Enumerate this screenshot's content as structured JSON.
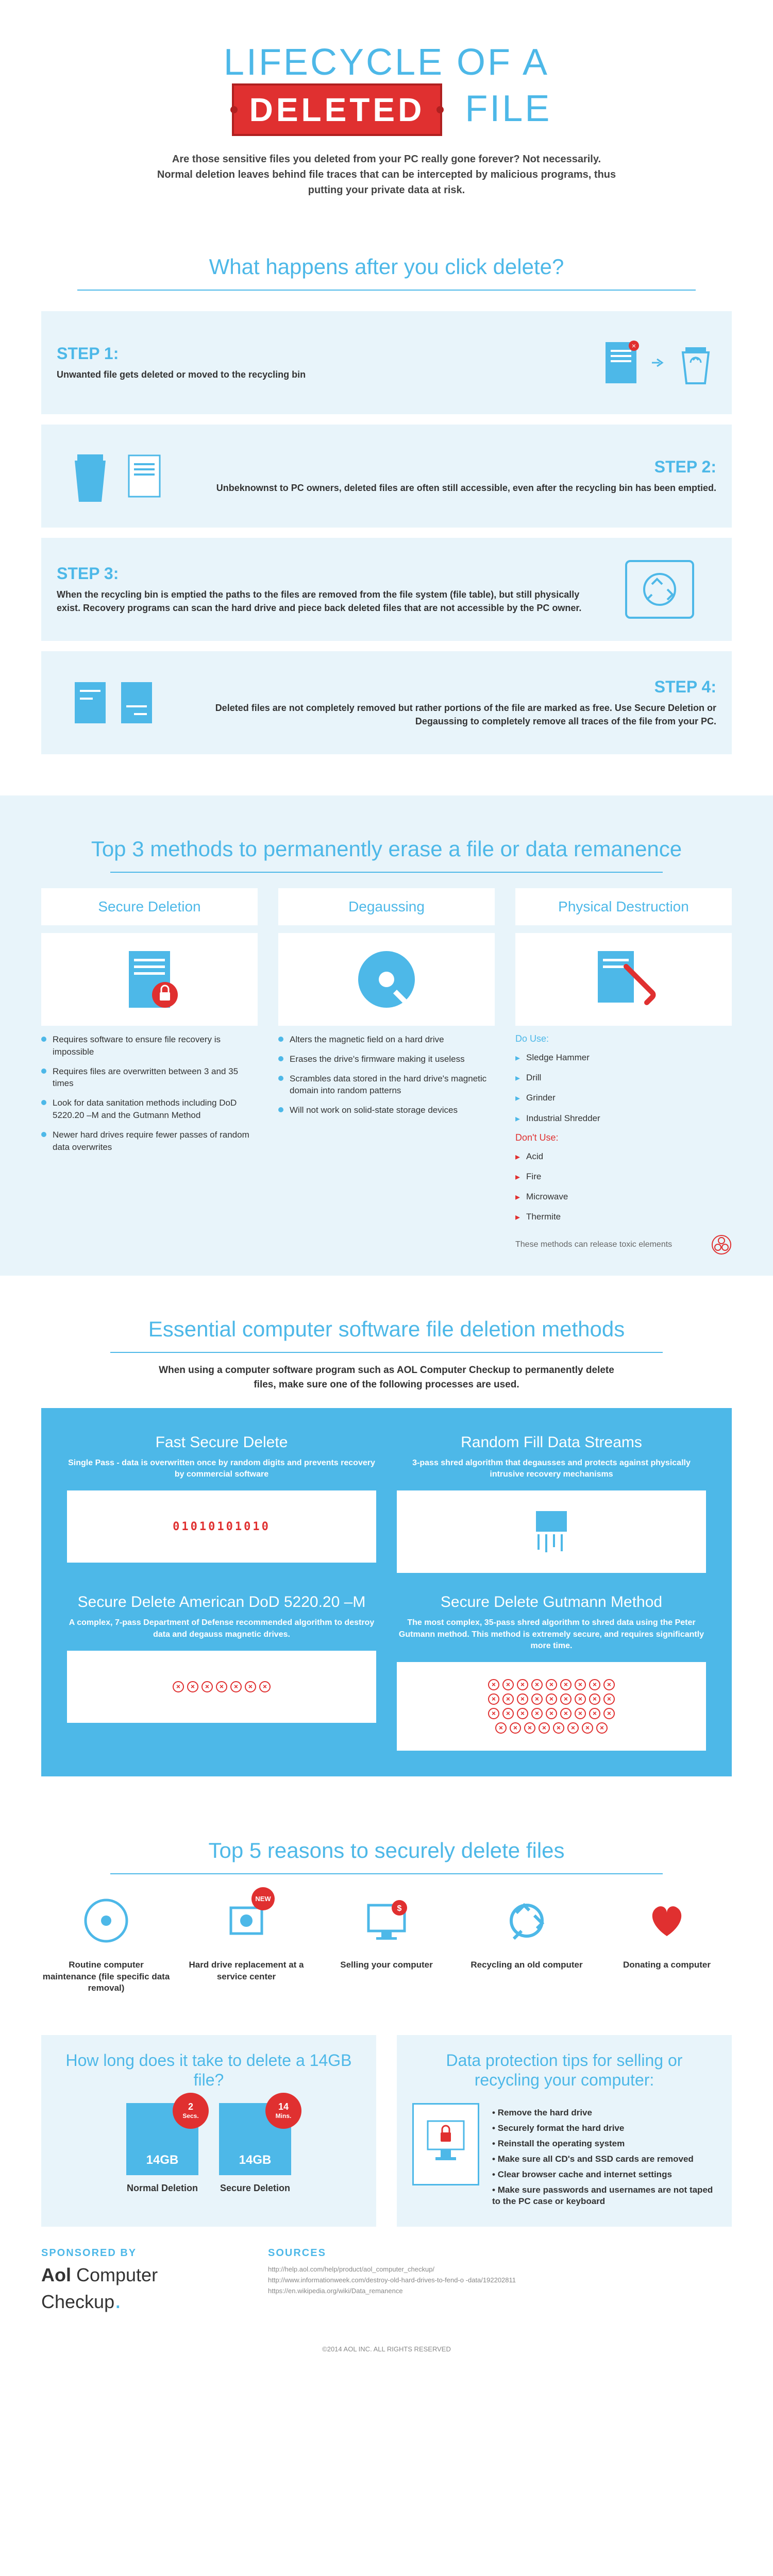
{
  "colors": {
    "primary": "#4db8e8",
    "accent": "#e03030",
    "lightbg": "#e8f4fa",
    "text": "#333"
  },
  "header": {
    "title_pre": "LIFECYCLE OF A",
    "deleted": "DELETED",
    "title_post": "FILE",
    "intro": "Are those sensitive files you deleted from your PC really gone forever? Not necessarily. Normal deletion leaves behind file traces that can be intercepted by malicious programs, thus putting your private data at risk."
  },
  "what_happens": {
    "title": "What happens after you click delete?",
    "steps": [
      {
        "label": "STEP 1:",
        "desc": "Unwanted file gets deleted or moved to the recycling bin"
      },
      {
        "label": "STEP 2:",
        "desc": "Unbeknownst to PC owners, deleted files are often still accessible, even after the recycling bin has been emptied."
      },
      {
        "label": "STEP 3:",
        "desc": "When the recycling bin is emptied the paths to the files are removed from the file system (file table), but still physically exist. Recovery programs can scan the hard drive and piece back deleted files that are not accessible by the PC owner."
      },
      {
        "label": "STEP 4:",
        "desc": "Deleted files are not completely removed but rather portions of the file are marked as free. Use Secure Deletion or Degaussing to completely remove all traces of the file from your PC."
      }
    ]
  },
  "methods": {
    "title": "Top 3 methods to permanently erase a file or data remanence",
    "cols": [
      {
        "name": "Secure Deletion",
        "items": [
          "Requires software to ensure file recovery is impossible",
          "Requires files are overwritten between 3 and 35 times",
          "Look for data sanitation methods including DoD 5220.20 –M and the Gutmann Method",
          "Newer hard drives require fewer passes of random data overwrites"
        ]
      },
      {
        "name": "Degaussing",
        "items": [
          "Alters the magnetic field on a hard drive",
          "Erases the drive's firmware making it useless",
          "Scrambles data stored in the hard drive's magnetic domain into random patterns",
          "Will not work on solid-state storage devices"
        ]
      },
      {
        "name": "Physical Destruction",
        "do_label": "Do Use:",
        "do_items": [
          "Sledge Hammer",
          "Drill",
          "Grinder",
          "Industrial Shredder"
        ],
        "dont_label": "Don't Use:",
        "dont_items": [
          "Acid",
          "Fire",
          "Microwave",
          "Thermite"
        ],
        "toxic": "These methods can release toxic elements"
      }
    ]
  },
  "essential": {
    "title": "Essential computer software file deletion methods",
    "intro": "When using a computer software program such as AOL Computer Checkup to permanently delete files, make sure one of the following processes are used.",
    "cards": [
      {
        "title": "Fast Secure Delete",
        "desc": "Single Pass - data is overwritten once by random digits and prevents recovery by commercial software",
        "visual": "binary",
        "text": "01010101010"
      },
      {
        "title": "Random Fill Data Streams",
        "desc": "3-pass shred algorithm that degausses and protects against physically intrusive recovery mechanisms",
        "visual": "shred"
      },
      {
        "title": "Secure Delete American DoD 5220.20 –M",
        "desc": "A complex, 7-pass Department of Defense recommended algorithm to destroy data and degauss magnetic drives.",
        "visual": "x7"
      },
      {
        "title": "Secure Delete Gutmann Method",
        "desc": "The most complex, 35-pass shred algorithm to shred data using the Peter Gutmann method. This method is extremely secure, and requires significantly more time.",
        "visual": "x35"
      }
    ]
  },
  "reasons": {
    "title": "Top 5 reasons to securely delete files",
    "items": [
      {
        "label": "Routine computer maintenance (file specific data removal)"
      },
      {
        "label": "Hard drive replacement at a service center",
        "badge": "NEW"
      },
      {
        "label": "Selling your computer"
      },
      {
        "label": "Recycling an old computer"
      },
      {
        "label": "Donating a computer"
      }
    ]
  },
  "howlong": {
    "title": "How long does it take to delete a 14GB file?",
    "items": [
      {
        "size": "14GB",
        "time_n": "2",
        "time_u": "Secs.",
        "label": "Normal Deletion"
      },
      {
        "size": "14GB",
        "time_n": "14",
        "time_u": "Mins.",
        "label": "Secure Deletion"
      }
    ]
  },
  "tips": {
    "title": "Data protection tips for selling or recycling your computer:",
    "items": [
      "Remove the hard drive",
      "Securely format the hard drive",
      "Reinstall the operating system",
      "Make sure all CD's and SSD cards are removed",
      "Clear browser cache and internet settings",
      "Make sure passwords and usernames are not taped to the PC case or keyboard"
    ]
  },
  "footer": {
    "sponsor_label": "SPONSORED BY",
    "aol": "Aol",
    "product": " Computer Checkup",
    "sources_label": "SOURCES",
    "sources": [
      "http://help.aol.com/help/product/aol_computer_checkup/",
      "http://www.informationweek.com/destroy-old-hard-drives-to-fend-o -data/192202811",
      "https://en.wikipedia.org/wiki/Data_remanence"
    ],
    "copyright": "©2014 AOL INC. ALL RIGHTS RESERVED"
  }
}
